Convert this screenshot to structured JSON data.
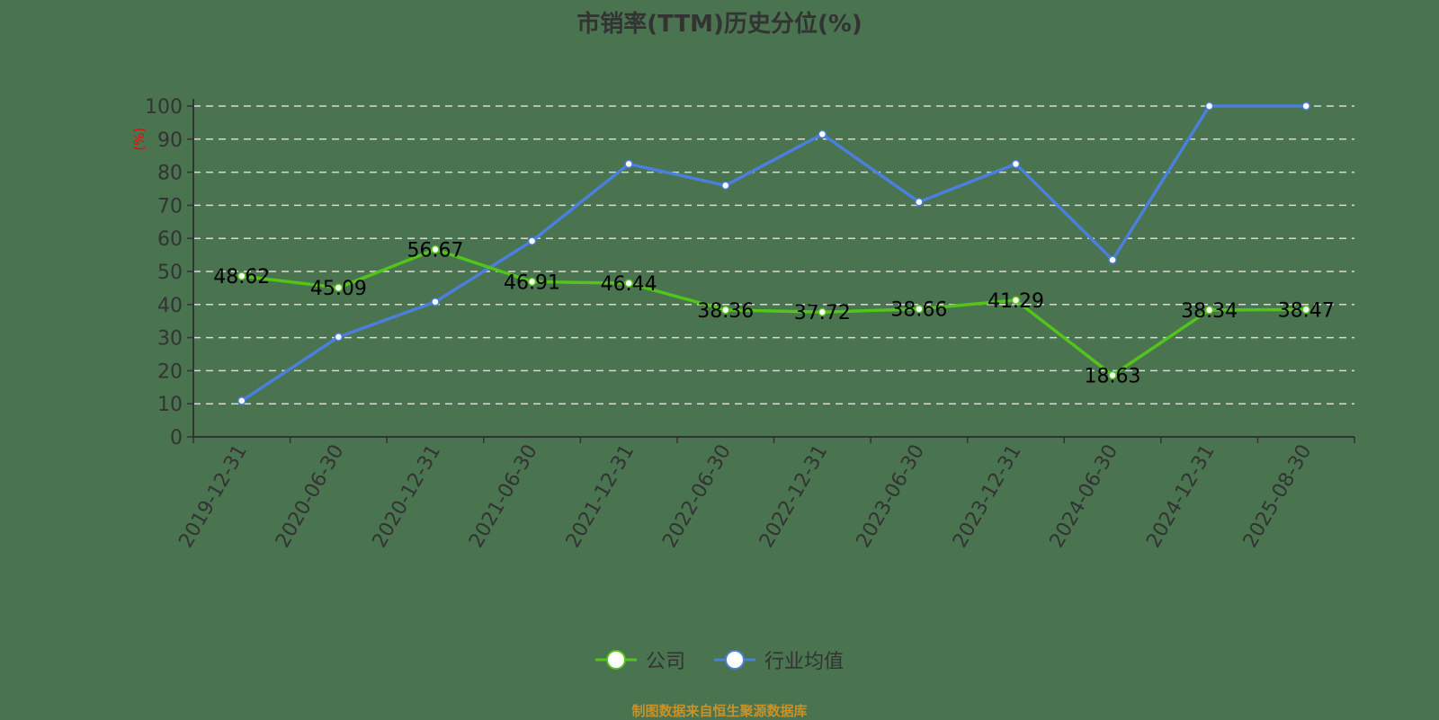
{
  "title": "市销率(TTM)历史分位(%)",
  "source": "制图数据来自恒生聚源数据库",
  "colors": {
    "company": "#52c41a",
    "industry": "#4a7fdc",
    "background": "#4a7350",
    "ylabel": "#ff0000"
  },
  "legend": [
    {
      "label": "公司",
      "color": "#52c41a"
    },
    {
      "label": "行业均值",
      "color": "#4a7fdc"
    }
  ],
  "chart_data": {
    "type": "line",
    "title": "市销率(TTM)历史分位(%)",
    "xlabel": "",
    "ylabel": "(%)",
    "ylim": [
      0,
      100
    ],
    "yticks": [
      0,
      10,
      20,
      30,
      40,
      50,
      60,
      70,
      80,
      90,
      100
    ],
    "grid": true,
    "legend_position": "bottom",
    "categories": [
      "2019-12-31",
      "2020-06-30",
      "2020-12-31",
      "2021-06-30",
      "2021-12-31",
      "2022-06-30",
      "2022-12-31",
      "2023-06-30",
      "2023-12-31",
      "2024-06-30",
      "2024-12-31",
      "2025-08-30"
    ],
    "series": [
      {
        "name": "公司",
        "values": [
          48.62,
          45.09,
          56.67,
          46.91,
          46.44,
          38.36,
          37.72,
          38.66,
          41.29,
          18.63,
          38.34,
          38.47
        ],
        "labels_shown": true
      },
      {
        "name": "行业均值",
        "values": [
          10.9,
          30.2,
          40.8,
          59.2,
          82.5,
          76.0,
          91.5,
          71.0,
          82.5,
          53.5,
          100,
          100
        ],
        "labels_shown": false
      }
    ]
  }
}
